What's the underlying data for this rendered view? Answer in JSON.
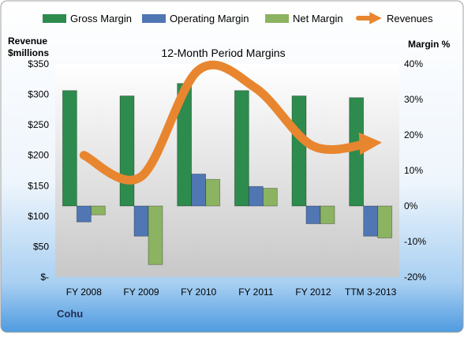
{
  "company": "Cohu",
  "chart_data": {
    "type": "bar",
    "title": "12-Month Period Margins",
    "ylabel_left": "Revenue $millions",
    "ylabel_right": "Margin %",
    "categories": [
      "FY 2008",
      "FY 2009",
      "FY 2010",
      "FY 2011",
      "FY 2012",
      "TTM 3-2013"
    ],
    "left_axis": {
      "min": 0,
      "max": 350,
      "ticks": [
        0,
        50,
        100,
        150,
        200,
        250,
        300,
        350
      ],
      "tick_labels": [
        "$-",
        "$50",
        "$100",
        "$150",
        "$200",
        "$250",
        "$300",
        "$350"
      ]
    },
    "right_axis": {
      "min": -20,
      "max": 40,
      "ticks": [
        -20,
        -10,
        0,
        10,
        20,
        30,
        40
      ],
      "tick_labels": [
        "-20%",
        "-10%",
        "0%",
        "10%",
        "20%",
        "30%",
        "40%"
      ]
    },
    "series": [
      {
        "name": "Gross Margin",
        "type": "bar",
        "axis": "right",
        "color": "#2e8b4e",
        "values": [
          32.5,
          31,
          34.5,
          32.5,
          31,
          30.5
        ]
      },
      {
        "name": "Operating Margin",
        "type": "bar",
        "axis": "right",
        "color": "#5077b4",
        "values": [
          -4.5,
          -8.5,
          9,
          5.5,
          -5,
          -8.5
        ]
      },
      {
        "name": "Net Margin",
        "type": "bar",
        "axis": "right",
        "color": "#8cb361",
        "values": [
          -2.5,
          -16.5,
          7.5,
          5,
          -5,
          -9
        ]
      },
      {
        "name": "Revenues",
        "type": "line",
        "axis": "left",
        "color": "#e8862f",
        "values": [
          200,
          165,
          340,
          310,
          215,
          220
        ]
      }
    ],
    "legend_position": "top",
    "grid": false
  }
}
